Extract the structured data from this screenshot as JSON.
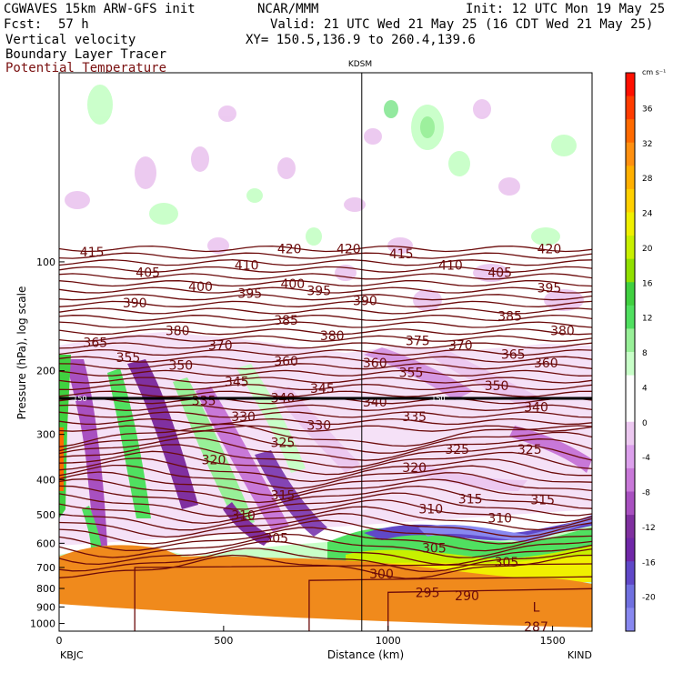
{
  "header": {
    "model": "CGWAVES 15km ARW-GFS init",
    "org": "NCAR/MMM",
    "init": "Init: 12 UTC Mon 19 May 25",
    "fcst_label": "Fcst:",
    "fcst_value": "57 h",
    "valid": "Valid: 21 UTC Wed 21 May 25 (16 CDT Wed 21 May 25)",
    "fields": [
      "Vertical velocity",
      "Boundary Layer Tracer",
      "Potential Temperature"
    ],
    "xy": "XY= 150.5,136.9 to 260.4,139.6"
  },
  "colors": {
    "theta": "#6b0a0a",
    "terrain": "#f08a1c",
    "frame": "#000000"
  },
  "chart_data": {
    "type": "heatmap",
    "title": "",
    "xlabel": "Distance (km)",
    "ylabel": "Pressure (hPa), log scale",
    "x_ticks": [
      "0",
      "500",
      "1000",
      "1500"
    ],
    "x_tick_values": [
      0,
      500,
      1000,
      1500
    ],
    "xlim": [
      0,
      1620
    ],
    "y_ticks": [
      "100",
      "200",
      "300",
      "400",
      "500",
      "600",
      "700",
      "800",
      "900",
      "1000"
    ],
    "y_tick_values": [
      100,
      200,
      300,
      400,
      500,
      600,
      700,
      800,
      900,
      1000
    ],
    "y_scale": "log",
    "left_station": "KBJC",
    "right_station": "KIND",
    "marker_station": "KDSM",
    "marker_x_km": 920,
    "tropopause_label": "150",
    "colorbar": {
      "units": "cm s⁻¹",
      "ticks": [
        "36",
        "32",
        "28",
        "24",
        "20",
        "16",
        "12",
        "8",
        "4",
        "0",
        "-4",
        "-8",
        "-12",
        "-16",
        "-20"
      ],
      "tick_values": [
        36,
        32,
        28,
        24,
        20,
        16,
        12,
        8,
        4,
        0,
        -4,
        -8,
        -12,
        -16,
        -20
      ],
      "colors": [
        "#ff1000",
        "#ff3c00",
        "#ff6a00",
        "#ff9010",
        "#ffb000",
        "#ffd000",
        "#f0f000",
        "#c8f000",
        "#90e000",
        "#40d040",
        "#50e060",
        "#98f098",
        "#c8ffc8",
        "#ffffff",
        "#ffffff",
        "#ecc8f0",
        "#dca0ec",
        "#c878d8",
        "#a850c0",
        "#8030a0",
        "#7028a8",
        "#6048c8",
        "#7070e0",
        "#8888f0"
      ]
    },
    "theta_labels": [
      {
        "text": "415",
        "x": 100,
        "p": 94
      },
      {
        "text": "420",
        "x": 700,
        "p": 92
      },
      {
        "text": "420",
        "x": 880,
        "p": 92
      },
      {
        "text": "415",
        "x": 1040,
        "p": 95
      },
      {
        "text": "420",
        "x": 1490,
        "p": 92
      },
      {
        "text": "410",
        "x": 570,
        "p": 102
      },
      {
        "text": "410",
        "x": 1190,
        "p": 102
      },
      {
        "text": "405",
        "x": 270,
        "p": 107
      },
      {
        "text": "405",
        "x": 1340,
        "p": 107
      },
      {
        "text": "400",
        "x": 430,
        "p": 117
      },
      {
        "text": "400",
        "x": 710,
        "p": 115
      },
      {
        "text": "395",
        "x": 580,
        "p": 122
      },
      {
        "text": "395",
        "x": 790,
        "p": 120
      },
      {
        "text": "395",
        "x": 1490,
        "p": 118
      },
      {
        "text": "390",
        "x": 230,
        "p": 130
      },
      {
        "text": "390",
        "x": 930,
        "p": 128
      },
      {
        "text": "385",
        "x": 690,
        "p": 145
      },
      {
        "text": "385",
        "x": 1370,
        "p": 141
      },
      {
        "text": "380",
        "x": 360,
        "p": 155
      },
      {
        "text": "380",
        "x": 830,
        "p": 160
      },
      {
        "text": "380",
        "x": 1530,
        "p": 155
      },
      {
        "text": "375",
        "x": 1090,
        "p": 165
      },
      {
        "text": "370",
        "x": 490,
        "p": 170
      },
      {
        "text": "370",
        "x": 1220,
        "p": 170
      },
      {
        "text": "365",
        "x": 110,
        "p": 167
      },
      {
        "text": "365",
        "x": 1380,
        "p": 180
      },
      {
        "text": "360",
        "x": 690,
        "p": 188
      },
      {
        "text": "360",
        "x": 960,
        "p": 190
      },
      {
        "text": "360",
        "x": 1480,
        "p": 190
      },
      {
        "text": "355",
        "x": 210,
        "p": 184
      },
      {
        "text": "355",
        "x": 1070,
        "p": 202
      },
      {
        "text": "350",
        "x": 370,
        "p": 193
      },
      {
        "text": "350",
        "x": 1330,
        "p": 220
      },
      {
        "text": "345",
        "x": 540,
        "p": 214
      },
      {
        "text": "345",
        "x": 800,
        "p": 224
      },
      {
        "text": "340",
        "x": 680,
        "p": 238
      },
      {
        "text": "340",
        "x": 960,
        "p": 244
      },
      {
        "text": "340",
        "x": 1450,
        "p": 252
      },
      {
        "text": "335",
        "x": 440,
        "p": 242
      },
      {
        "text": "335",
        "x": 1080,
        "p": 268
      },
      {
        "text": "330",
        "x": 560,
        "p": 268
      },
      {
        "text": "330",
        "x": 790,
        "p": 283
      },
      {
        "text": "325",
        "x": 680,
        "p": 316
      },
      {
        "text": "325",
        "x": 1210,
        "p": 330
      },
      {
        "text": "325",
        "x": 1430,
        "p": 330
      },
      {
        "text": "320",
        "x": 470,
        "p": 352
      },
      {
        "text": "320",
        "x": 1080,
        "p": 370
      },
      {
        "text": "315",
        "x": 680,
        "p": 442
      },
      {
        "text": "315",
        "x": 1250,
        "p": 452
      },
      {
        "text": "315",
        "x": 1470,
        "p": 455
      },
      {
        "text": "310",
        "x": 560,
        "p": 502
      },
      {
        "text": "310",
        "x": 1130,
        "p": 482
      },
      {
        "text": "310",
        "x": 1340,
        "p": 510
      },
      {
        "text": "305",
        "x": 660,
        "p": 580
      },
      {
        "text": "305",
        "x": 1140,
        "p": 618
      },
      {
        "text": "305",
        "x": 1360,
        "p": 676
      },
      {
        "text": "300",
        "x": 980,
        "p": 728
      },
      {
        "text": "295",
        "x": 1120,
        "p": 822
      },
      {
        "text": "290",
        "x": 1240,
        "p": 838
      },
      {
        "text": "287",
        "x": 1450,
        "p": 1020
      },
      {
        "text": "L",
        "x": 1450,
        "p": 900
      }
    ]
  }
}
